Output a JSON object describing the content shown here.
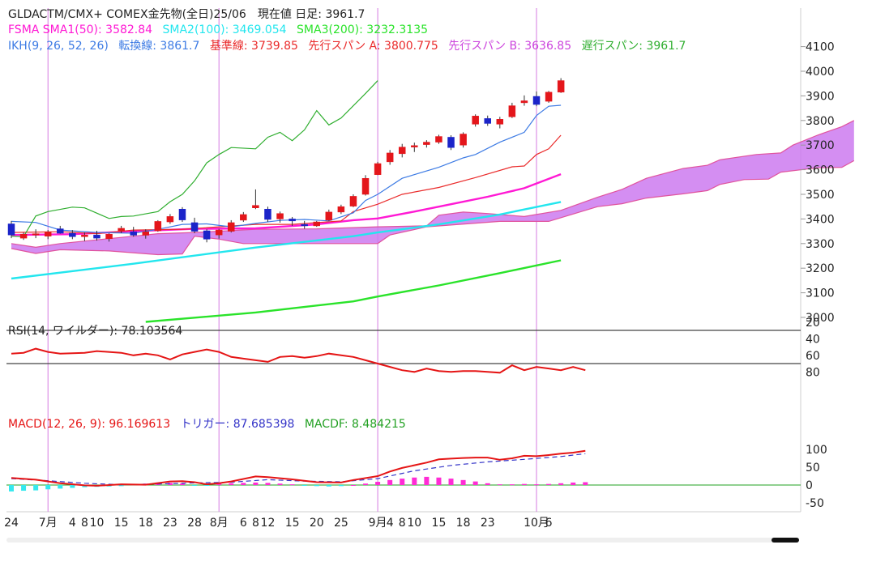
{
  "header": {
    "line1": "GLDACTM/CMX+ COMEX金先物(全日)25/06　現在値 日足: 3961.7",
    "fsma": {
      "prefix": "FSMA SMA1(50): 3582.84",
      "sma2": "SMA2(100): 3469.054",
      "sma3": "SMA3(200): 3232.3135"
    },
    "ikh": {
      "prefix": "IKH(9, 26, 52, 26)",
      "tenkan": "転換線: 3861.7",
      "kijun": "基準線: 3739.85",
      "spanA": "先行スパン A: 3800.775",
      "spanB": "先行スパン B: 3636.85",
      "chikou": "遅行スパン: 3961.7"
    },
    "rsi_label": "RSI(14, ワイルダー): 78.103564",
    "macd": {
      "macd": "MACD(12, 26, 9): 96.169613",
      "trigger": "トリガー: 87.685398",
      "macdf": "MACDF: 8.484215"
    }
  },
  "colors": {
    "up": "#e4161b",
    "down": "#1b24c9",
    "sma1": "#ff19d4",
    "sma2": "#23e6ee",
    "sma3": "#2ae32a",
    "tenkan": "#3d7be4",
    "kijun": "#ea2b2b",
    "chikou": "#2fae2f",
    "cloud": "#cc7af0",
    "cloud_edge": "#e0539e",
    "rsi": "#e51515",
    "macd": "#e51515",
    "trigger": "#3434c8",
    "macdf": "#ff2cd5",
    "zero": "#22a022",
    "vline": "#d67ce2"
  },
  "chart_data": {
    "type": "candlestick",
    "price_axis": {
      "ylim": [
        2962,
        4180
      ],
      "ticks": [
        3000,
        3100,
        3200,
        3300,
        3400,
        3500,
        3600,
        3700,
        3800,
        3900,
        4000,
        4100
      ]
    },
    "rsi_axis": {
      "ylim": [
        10,
        92
      ],
      "ticks": [
        20,
        40,
        60,
        80
      ],
      "levels": [
        70,
        30
      ]
    },
    "macd_axis": {
      "ylim": [
        -60,
        118
      ],
      "ticks": [
        -50,
        0,
        50,
        100
      ]
    },
    "x_tick_labels": [
      {
        "i": 0,
        "label": "24"
      },
      {
        "i": 3,
        "label": "7月"
      },
      {
        "i": 5,
        "label": "4"
      },
      {
        "i": 6,
        "label": "8"
      },
      {
        "i": 7,
        "label": "10"
      },
      {
        "i": 9,
        "label": "15"
      },
      {
        "i": 11,
        "label": "18"
      },
      {
        "i": 13,
        "label": "23"
      },
      {
        "i": 15,
        "label": "28"
      },
      {
        "i": 17,
        "label": "8月"
      },
      {
        "i": 19,
        "label": "6"
      },
      {
        "i": 20,
        "label": "8"
      },
      {
        "i": 21,
        "label": "12"
      },
      {
        "i": 23,
        "label": "15"
      },
      {
        "i": 25,
        "label": "20"
      },
      {
        "i": 27,
        "label": "25"
      },
      {
        "i": 30,
        "label": "9月"
      },
      {
        "i": 31,
        "label": "4"
      },
      {
        "i": 32,
        "label": "8"
      },
      {
        "i": 33,
        "label": "10"
      },
      {
        "i": 35,
        "label": "15"
      },
      {
        "i": 37,
        "label": "18"
      },
      {
        "i": 39,
        "label": "23"
      },
      {
        "i": 43,
        "label": "10月"
      },
      {
        "i": 44,
        "label": "6"
      }
    ],
    "month_lines": [
      3,
      17,
      30,
      43
    ],
    "candles": [
      [
        3380,
        3392,
        3322,
        3335
      ],
      [
        3322,
        3345,
        3315,
        3338
      ],
      [
        3336,
        3358,
        3322,
        3340
      ],
      [
        3330,
        3355,
        3318,
        3348
      ],
      [
        3360,
        3372,
        3340,
        3342
      ],
      [
        3342,
        3355,
        3318,
        3328
      ],
      [
        3328,
        3345,
        3310,
        3335
      ],
      [
        3335,
        3352,
        3312,
        3322
      ],
      [
        3320,
        3342,
        3308,
        3338
      ],
      [
        3352,
        3372,
        3342,
        3362
      ],
      [
        3348,
        3368,
        3328,
        3334
      ],
      [
        3334,
        3358,
        3320,
        3348
      ],
      [
        3352,
        3395,
        3348,
        3390
      ],
      [
        3388,
        3420,
        3380,
        3410
      ],
      [
        3440,
        3448,
        3388,
        3396
      ],
      [
        3385,
        3405,
        3342,
        3350
      ],
      [
        3352,
        3358,
        3305,
        3318
      ],
      [
        3335,
        3360,
        3320,
        3355
      ],
      [
        3350,
        3395,
        3345,
        3385
      ],
      [
        3395,
        3428,
        3388,
        3418
      ],
      [
        3445,
        3520,
        3440,
        3455
      ],
      [
        3440,
        3450,
        3388,
        3398
      ],
      [
        3400,
        3430,
        3385,
        3422
      ],
      [
        3400,
        3408,
        3372,
        3392
      ],
      [
        3378,
        3392,
        3360,
        3372
      ],
      [
        3372,
        3392,
        3368,
        3388
      ],
      [
        3395,
        3438,
        3392,
        3428
      ],
      [
        3428,
        3458,
        3420,
        3450
      ],
      [
        3452,
        3500,
        3448,
        3492
      ],
      [
        3500,
        3578,
        3495,
        3565
      ],
      [
        3580,
        3632,
        3578,
        3625
      ],
      [
        3632,
        3680,
        3620,
        3668
      ],
      [
        3665,
        3705,
        3650,
        3692
      ],
      [
        3692,
        3710,
        3672,
        3698
      ],
      [
        3702,
        3720,
        3690,
        3712
      ],
      [
        3712,
        3742,
        3705,
        3735
      ],
      [
        3732,
        3740,
        3680,
        3690
      ],
      [
        3700,
        3752,
        3690,
        3745
      ],
      [
        3785,
        3825,
        3775,
        3818
      ],
      [
        3808,
        3820,
        3778,
        3788
      ],
      [
        3785,
        3815,
        3768,
        3805
      ],
      [
        3815,
        3872,
        3810,
        3860
      ],
      [
        3872,
        3902,
        3860,
        3880
      ],
      [
        3898,
        3918,
        3858,
        3865
      ],
      [
        3878,
        3920,
        3872,
        3915
      ],
      [
        3915,
        3972,
        3912,
        3962
      ]
    ],
    "tenkan": [
      [
        0,
        3390
      ],
      [
        2,
        3386
      ],
      [
        4,
        3355
      ],
      [
        7,
        3345
      ],
      [
        10,
        3342
      ],
      [
        12,
        3358
      ],
      [
        14,
        3378
      ],
      [
        16,
        3380
      ],
      [
        18,
        3368
      ],
      [
        20,
        3382
      ],
      [
        22,
        3394
      ],
      [
        24,
        3398
      ],
      [
        26,
        3392
      ],
      [
        28,
        3425
      ],
      [
        29,
        3475
      ],
      [
        30,
        3500
      ],
      [
        32,
        3565
      ],
      [
        35,
        3610
      ],
      [
        37,
        3648
      ],
      [
        38,
        3662
      ],
      [
        40,
        3712
      ],
      [
        42,
        3752
      ],
      [
        43,
        3820
      ],
      [
        44,
        3858
      ],
      [
        45,
        3862
      ]
    ],
    "kijun": [
      [
        0,
        3345
      ],
      [
        4,
        3348
      ],
      [
        7,
        3340
      ],
      [
        10,
        3355
      ],
      [
        14,
        3358
      ],
      [
        20,
        3378
      ],
      [
        23,
        3378
      ],
      [
        27,
        3392
      ],
      [
        28,
        3430
      ],
      [
        30,
        3460
      ],
      [
        32,
        3500
      ],
      [
        35,
        3528
      ],
      [
        38,
        3568
      ],
      [
        41,
        3612
      ],
      [
        42,
        3615
      ],
      [
        43,
        3662
      ],
      [
        44,
        3685
      ],
      [
        45,
        3740
      ]
    ],
    "sma1": [
      [
        0,
        3335
      ],
      [
        5,
        3338
      ],
      [
        10,
        3350
      ],
      [
        15,
        3360
      ],
      [
        20,
        3362
      ],
      [
        25,
        3378
      ],
      [
        28,
        3395
      ],
      [
        30,
        3402
      ],
      [
        33,
        3430
      ],
      [
        36,
        3460
      ],
      [
        39,
        3490
      ],
      [
        42,
        3525
      ],
      [
        45,
        3582
      ]
    ],
    "sma2": [
      [
        0,
        3158
      ],
      [
        10,
        3218
      ],
      [
        20,
        3284
      ],
      [
        28,
        3330
      ],
      [
        30,
        3345
      ],
      [
        35,
        3378
      ],
      [
        40,
        3418
      ],
      [
        45,
        3469
      ]
    ],
    "sma3": [
      [
        11,
        2982
      ],
      [
        20,
        3020
      ],
      [
        28,
        3065
      ],
      [
        30,
        3085
      ],
      [
        35,
        3130
      ],
      [
        40,
        3180
      ],
      [
        45,
        3232
      ]
    ],
    "chikou": [
      [
        0,
        3330
      ],
      [
        1,
        3328
      ],
      [
        2,
        3412
      ],
      [
        3,
        3430
      ],
      [
        5,
        3448
      ],
      [
        6,
        3445
      ],
      [
        8,
        3402
      ],
      [
        9,
        3410
      ],
      [
        10,
        3412
      ],
      [
        12,
        3430
      ],
      [
        13,
        3470
      ],
      [
        14,
        3500
      ],
      [
        15,
        3555
      ],
      [
        16,
        3628
      ],
      [
        17,
        3662
      ],
      [
        18,
        3690
      ],
      [
        20,
        3685
      ],
      [
        21,
        3732
      ],
      [
        22,
        3752
      ],
      [
        23,
        3718
      ],
      [
        24,
        3762
      ],
      [
        25,
        3840
      ],
      [
        26,
        3782
      ],
      [
        27,
        3810
      ],
      [
        28,
        3860
      ],
      [
        29,
        3910
      ],
      [
        30,
        3962
      ]
    ],
    "span_a": [
      [
        0,
        3300
      ],
      [
        2,
        3285
      ],
      [
        4,
        3300
      ],
      [
        7,
        3315
      ],
      [
        10,
        3330
      ],
      [
        12,
        3340
      ],
      [
        15,
        3345
      ],
      [
        17,
        3350
      ],
      [
        20,
        3358
      ],
      [
        25,
        3360
      ],
      [
        30,
        3368
      ],
      [
        34,
        3372
      ],
      [
        35,
        3415
      ],
      [
        37,
        3428
      ],
      [
        39,
        3422
      ],
      [
        42,
        3410
      ],
      [
        45,
        3435
      ],
      [
        48,
        3488
      ],
      [
        50,
        3520
      ],
      [
        52,
        3565
      ],
      [
        55,
        3605
      ],
      [
        57,
        3618
      ],
      [
        58,
        3640
      ],
      [
        61,
        3662
      ],
      [
        63,
        3668
      ],
      [
        64,
        3700
      ],
      [
        66,
        3740
      ],
      [
        68,
        3775
      ],
      [
        69,
        3800
      ]
    ],
    "span_b": [
      [
        0,
        3280
      ],
      [
        2,
        3260
      ],
      [
        4,
        3275
      ],
      [
        8,
        3270
      ],
      [
        12,
        3255
      ],
      [
        14,
        3258
      ],
      [
        15,
        3330
      ],
      [
        17,
        3318
      ],
      [
        19,
        3300
      ],
      [
        27,
        3300
      ],
      [
        30,
        3300
      ],
      [
        31,
        3335
      ],
      [
        34,
        3368
      ],
      [
        40,
        3390
      ],
      [
        44,
        3390
      ],
      [
        46,
        3420
      ],
      [
        48,
        3450
      ],
      [
        50,
        3462
      ],
      [
        52,
        3485
      ],
      [
        55,
        3502
      ],
      [
        57,
        3515
      ],
      [
        58,
        3540
      ],
      [
        60,
        3560
      ],
      [
        62,
        3562
      ],
      [
        63,
        3590
      ],
      [
        66,
        3608
      ],
      [
        68,
        3610
      ],
      [
        69,
        3637
      ]
    ],
    "rsi": [
      [
        0,
        58
      ],
      [
        1,
        57
      ],
      [
        2,
        52
      ],
      [
        3,
        56
      ],
      [
        4,
        58
      ],
      [
        6,
        57
      ],
      [
        7,
        55
      ],
      [
        9,
        57
      ],
      [
        10,
        60
      ],
      [
        11,
        58
      ],
      [
        12,
        60
      ],
      [
        13,
        65
      ],
      [
        14,
        59
      ],
      [
        15,
        56
      ],
      [
        16,
        53
      ],
      [
        17,
        56
      ],
      [
        18,
        62
      ],
      [
        19,
        64
      ],
      [
        20,
        66
      ],
      [
        21,
        68
      ],
      [
        22,
        62
      ],
      [
        23,
        61
      ],
      [
        24,
        63
      ],
      [
        25,
        61
      ],
      [
        26,
        58
      ],
      [
        27,
        60
      ],
      [
        28,
        62
      ],
      [
        29,
        66
      ],
      [
        30,
        70
      ],
      [
        31,
        74
      ],
      [
        32,
        78
      ],
      [
        33,
        80
      ],
      [
        34,
        76
      ],
      [
        35,
        79
      ],
      [
        36,
        80
      ],
      [
        37,
        79
      ],
      [
        38,
        79
      ],
      [
        39,
        80
      ],
      [
        40,
        81
      ],
      [
        41,
        72
      ],
      [
        42,
        78
      ],
      [
        43,
        74
      ],
      [
        44,
        76
      ],
      [
        45,
        78
      ],
      [
        46,
        74
      ],
      [
        47,
        78
      ]
    ],
    "macd": [
      [
        0,
        20
      ],
      [
        2,
        15
      ],
      [
        4,
        5
      ],
      [
        6,
        -1
      ],
      [
        7,
        -2
      ],
      [
        9,
        2
      ],
      [
        11,
        1
      ],
      [
        13,
        10
      ],
      [
        14,
        11
      ],
      [
        15,
        8
      ],
      [
        16,
        2
      ],
      [
        17,
        5
      ],
      [
        18,
        10
      ],
      [
        20,
        24
      ],
      [
        21,
        22
      ],
      [
        23,
        16
      ],
      [
        25,
        8
      ],
      [
        27,
        7
      ],
      [
        28,
        14
      ],
      [
        30,
        25
      ],
      [
        31,
        38
      ],
      [
        32,
        48
      ],
      [
        34,
        63
      ],
      [
        35,
        72
      ],
      [
        36,
        74
      ],
      [
        37,
        76
      ],
      [
        38,
        77
      ],
      [
        39,
        77
      ],
      [
        40,
        71
      ],
      [
        41,
        75
      ],
      [
        42,
        82
      ],
      [
        43,
        81
      ],
      [
        44,
        84
      ],
      [
        45,
        88
      ],
      [
        46,
        91
      ],
      [
        47,
        96
      ]
    ],
    "trigger": [
      [
        0,
        18
      ],
      [
        3,
        12
      ],
      [
        6,
        5
      ],
      [
        9,
        1
      ],
      [
        12,
        3
      ],
      [
        15,
        6
      ],
      [
        18,
        8
      ],
      [
        21,
        15
      ],
      [
        24,
        11
      ],
      [
        27,
        9
      ],
      [
        30,
        18
      ],
      [
        33,
        40
      ],
      [
        36,
        55
      ],
      [
        39,
        65
      ],
      [
        42,
        72
      ],
      [
        45,
        80
      ],
      [
        47,
        88
      ]
    ],
    "macdf": [
      -18,
      -16,
      -15,
      -12,
      -10,
      -8,
      -6,
      -5,
      -4,
      -3,
      2,
      4,
      7,
      6,
      4,
      -2,
      -1,
      4,
      5,
      6,
      7,
      6,
      4,
      2,
      -1,
      -3,
      -4,
      -3,
      0,
      4,
      9,
      14,
      18,
      21,
      23,
      21,
      18,
      14,
      10,
      5,
      2,
      2,
      3,
      2,
      3,
      5,
      7,
      8
    ]
  }
}
